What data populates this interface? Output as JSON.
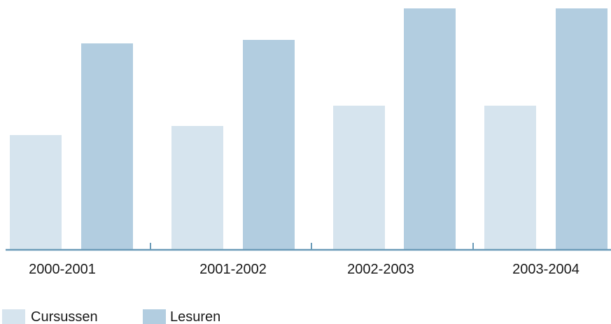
{
  "chart_data": {
    "type": "bar",
    "categories": [
      "2000-2001",
      "2001-2002",
      "2002-2003",
      "2003-2004"
    ],
    "series": [
      {
        "name": "Cursussen",
        "values": [
          164,
          177,
          206,
          206
        ],
        "color": "#d6e4ee"
      },
      {
        "name": "Lesuren",
        "values": [
          295,
          300,
          345,
          345
        ],
        "color": "#b2cde0"
      }
    ],
    "title": "",
    "xlabel": "",
    "ylabel": "",
    "ylim": [
      0,
      345
    ],
    "grid": false,
    "legend_position": "bottom-left",
    "axis_color": "#6b9bb8"
  }
}
